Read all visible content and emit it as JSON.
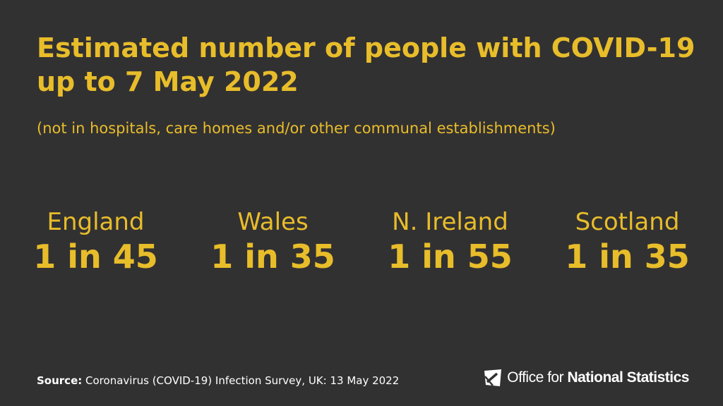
{
  "title": "Estimated number of people with COVID-19 up to 7 May 2022",
  "subtitle": "(not in hospitals, care homes and/or other communal establishments)",
  "stats": [
    {
      "name": "England",
      "value": "1 in 45"
    },
    {
      "name": "Wales",
      "value": "1 in 35"
    },
    {
      "name": "N. Ireland",
      "value": "1 in 55"
    },
    {
      "name": "Scotland",
      "value": "1 in 35"
    }
  ],
  "source": {
    "label": "Source:",
    "text": "Coronavirus (COVID-19) Infection Survey, UK: 13 May 2022"
  },
  "logo": {
    "text_regular": "Office for",
    "text_bold": "National Statistics",
    "icon": "ons-logo-icon"
  },
  "colors": {
    "background": "#323132",
    "accent": "#E8BD2A",
    "text": "#FFFFFF"
  }
}
